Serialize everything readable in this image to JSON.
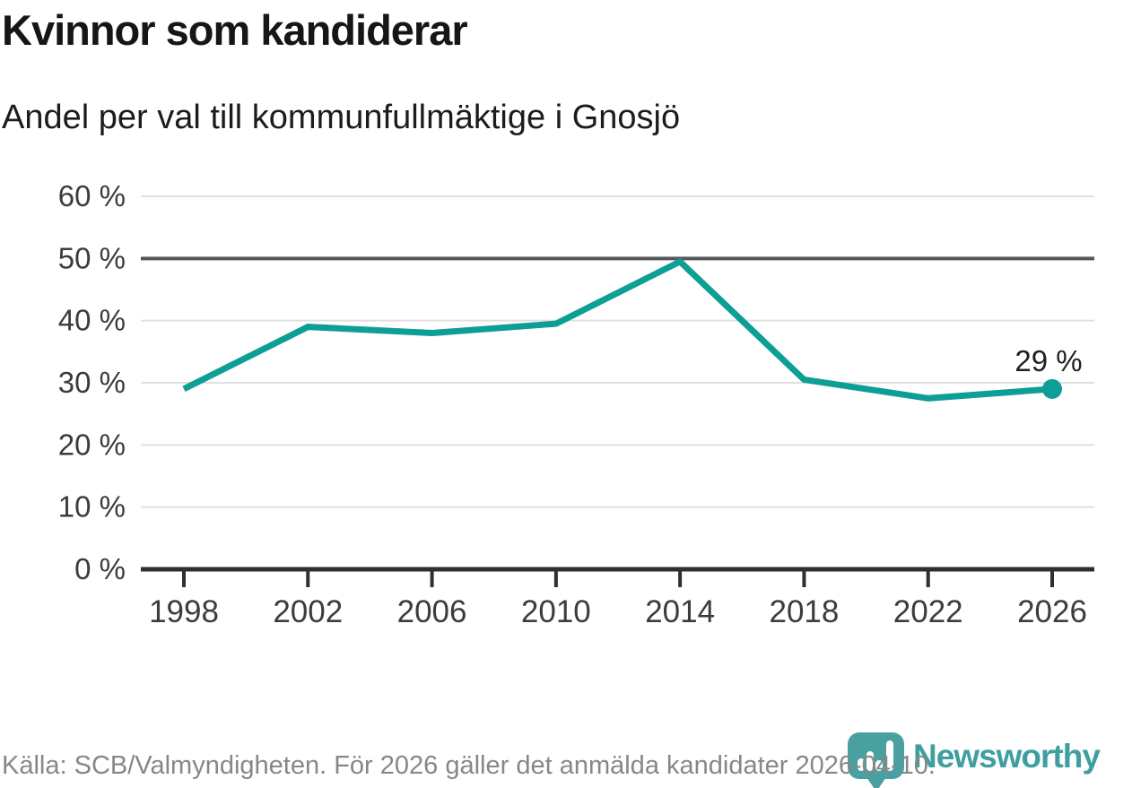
{
  "header": {
    "title": "Kvinnor som kandiderar",
    "subtitle": "Andel per val till kommunfullmäktige i Gnosjö"
  },
  "chart_data": {
    "type": "line",
    "categories": [
      "1998",
      "2002",
      "2006",
      "2010",
      "2014",
      "2018",
      "2022",
      "2026"
    ],
    "values": [
      29,
      39,
      38,
      39.5,
      49.5,
      30.5,
      27.5,
      29
    ],
    "title": "Kvinnor som kandiderar",
    "subtitle": "Andel per val till kommunfullmäktige i Gnosjö",
    "xlabel": "",
    "ylabel": "",
    "ylim": [
      0,
      60
    ],
    "y_ticks": [
      0,
      10,
      20,
      30,
      40,
      50,
      60
    ],
    "y_tick_labels": [
      "0 %",
      "10 %",
      "20 %",
      "30 %",
      "40 %",
      "50 %",
      "60 %"
    ],
    "highlight_gridline_value": 50,
    "grid": "horizontal",
    "legend": "none",
    "end_point_marker": true,
    "end_label": "29 %",
    "line_color": "#0d9e95"
  },
  "footer": {
    "source": "Källa: SCB/Valmyndigheten. För 2026 gäller det anmälda kandidater 2026-04-10.",
    "brand_name": "Newsworthy"
  },
  "colors": {
    "accent_line": "#0d9e95",
    "brand_teal": "#49a0a1",
    "brand_text_teal": "#3f9fa0",
    "grid_light": "#e0e0e0",
    "grid_emphasis": "#55565c",
    "axis_dark": "#2f2f33",
    "tick_label": "#3c3c3c",
    "value_label": "#1f1f1f",
    "muted_text": "#878787"
  }
}
